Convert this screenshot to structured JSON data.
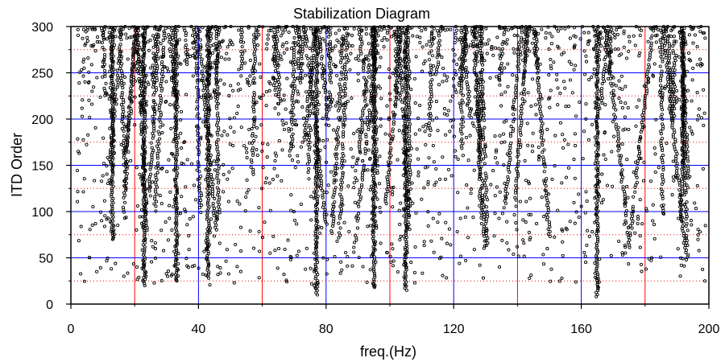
{
  "chart_data": {
    "type": "scatter",
    "title": "Stabilization Diagram",
    "xlabel": "freq.(Hz)",
    "ylabel": "ITD Order",
    "xlim": [
      0,
      200
    ],
    "ylim": [
      0,
      300
    ],
    "xticks": [
      "0",
      "40",
      "80",
      "120",
      "160",
      "200"
    ],
    "yticks": [
      "0",
      "50",
      "100",
      "150",
      "200",
      "250",
      "300"
    ],
    "grid": {
      "major_x": [
        40,
        80,
        120,
        160
      ],
      "major_y": [
        50,
        100,
        150,
        200,
        250,
        300
      ],
      "minor_x": [
        20,
        60,
        100,
        140,
        180
      ],
      "minor_y": [
        25,
        75,
        125,
        175,
        225,
        275
      ],
      "major_color": "#0000ff",
      "minor_color": "#ff0000"
    },
    "marker_color": "#000000",
    "stable_modes": [
      {
        "freq": 13,
        "order_min": 70,
        "order_max": 300
      },
      {
        "freq": 23,
        "order_min": 20,
        "order_max": 300
      },
      {
        "freq": 33,
        "order_min": 25,
        "order_max": 300
      },
      {
        "freq": 43,
        "order_min": 28,
        "order_max": 300
      },
      {
        "freq": 77,
        "order_min": 10,
        "order_max": 300
      },
      {
        "freq": 95,
        "order_min": 18,
        "order_max": 300
      },
      {
        "freq": 105,
        "order_min": 15,
        "order_max": 300
      },
      {
        "freq": 165,
        "order_min": 8,
        "order_max": 300
      }
    ]
  }
}
